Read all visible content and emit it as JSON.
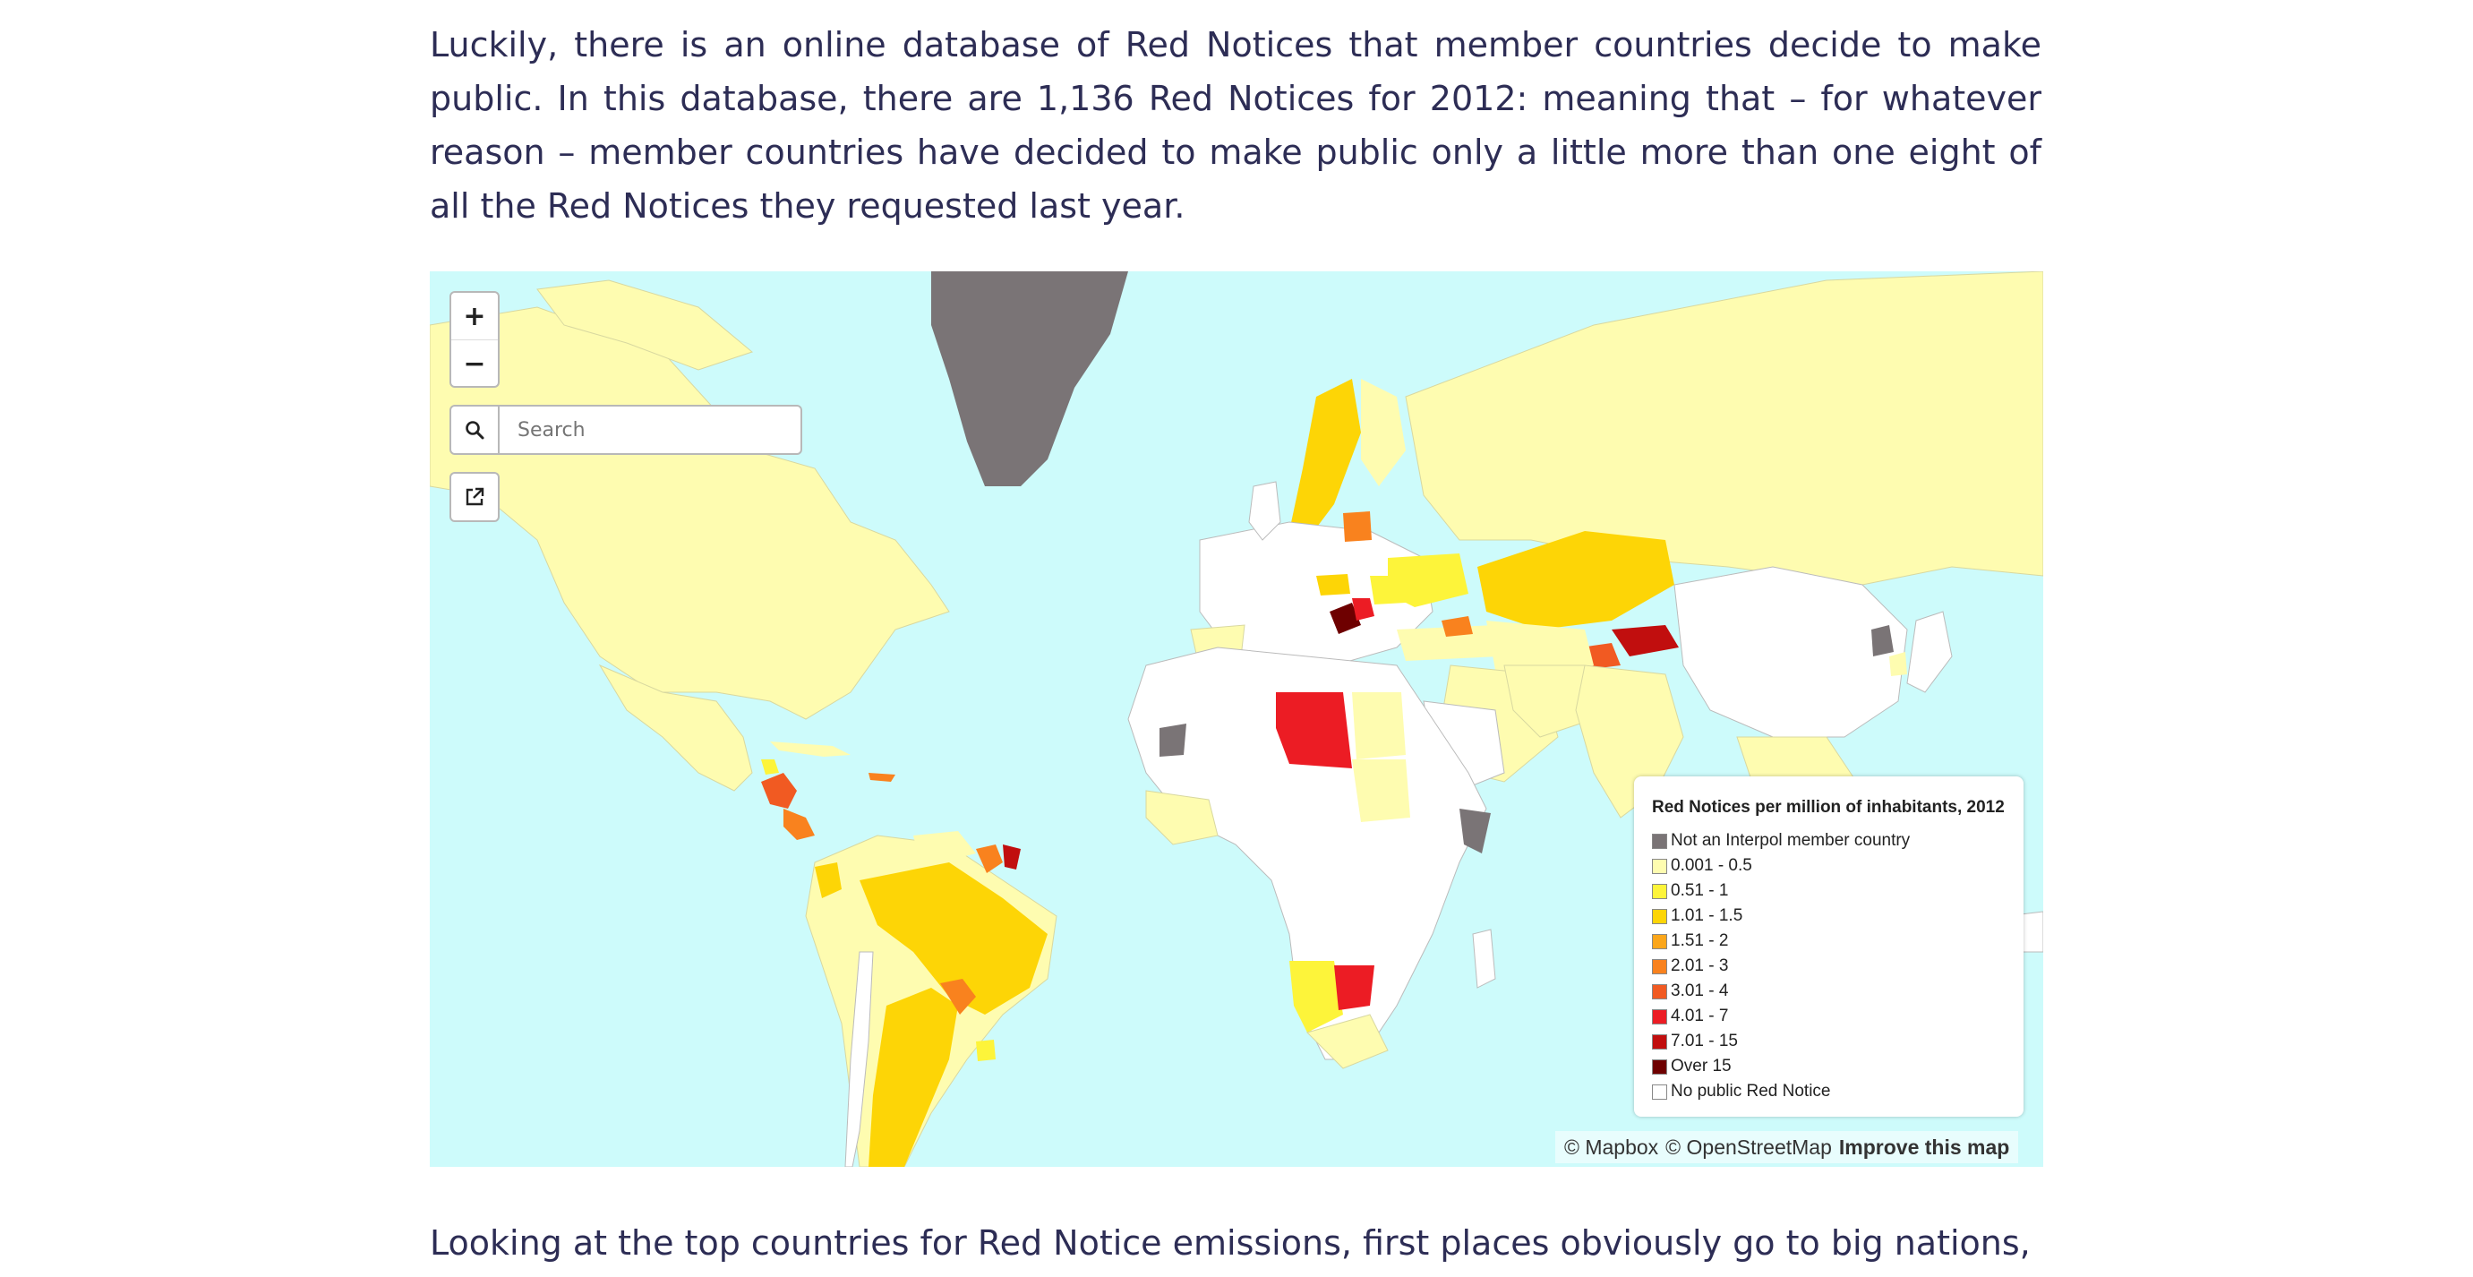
{
  "article": {
    "paragraph_1": "Luckily, there is an online database of Red Notices that member countries decide to make public. In this database, there are 1,136 Red Notices for 2012: meaning that – for whatever reason – member countries have decided to make public only a little more than one eight of all the Red Notices they requested last year.",
    "paragraph_2": "Looking at the top countries for Red Notice emissions, first places obviously go to big nations, like"
  },
  "map": {
    "zoom_in_label": "+",
    "zoom_out_label": "−",
    "search": {
      "placeholder": "Search",
      "value": ""
    },
    "icons": {
      "search": "search-icon",
      "share": "share-icon"
    },
    "colors": {
      "ocean": "#cdfbfb",
      "not_member": "#7a7476",
      "no_notice": "#ffffff",
      "low": "#fefcb0"
    },
    "legend": {
      "title": "Red Notices per million of inhabitants, 2012",
      "items": [
        {
          "label": "Not an Interpol member country",
          "color": "#7a7476"
        },
        {
          "label": "0.001 - 0.5",
          "color": "#fefcb0"
        },
        {
          "label": "0.51 - 1",
          "color": "#fdf43a"
        },
        {
          "label": "1.01 - 1.5",
          "color": "#fdd506"
        },
        {
          "label": "1.51 - 2",
          "color": "#fba61a"
        },
        {
          "label": "2.01 - 3",
          "color": "#f9821e"
        },
        {
          "label": "3.01 - 4",
          "color": "#f15a22"
        },
        {
          "label": "4.01 - 7",
          "color": "#ec1c24"
        },
        {
          "label": "7.01 - 15",
          "color": "#c10e0e"
        },
        {
          "label": "Over 15",
          "color": "#6e0000"
        },
        {
          "label": "No public Red Notice",
          "color": "#ffffff"
        }
      ]
    },
    "attribution": {
      "mapbox": "© Mapbox",
      "osm": "© OpenStreetMap",
      "improve": "Improve this map"
    }
  }
}
